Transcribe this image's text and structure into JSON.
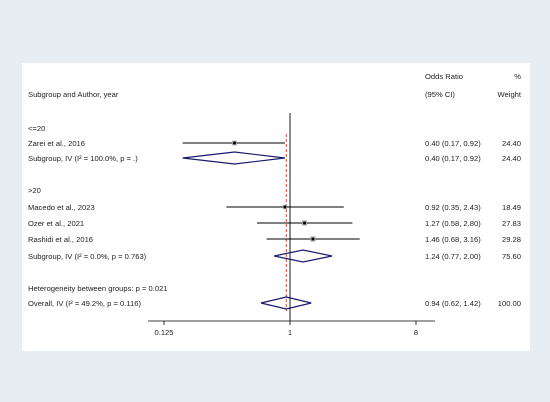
{
  "chart_data": {
    "type": "forest",
    "x_scale": "log",
    "xlim": [
      0.08,
      10
    ],
    "xticks": [
      {
        "value": 0.125,
        "label": "0.125"
      },
      {
        "value": 1,
        "label": "1"
      },
      {
        "value": 8,
        "label": "8"
      }
    ],
    "null_line": 1,
    "overall_line": 0.94,
    "colors": {
      "diamond": "#1a1a6e",
      "overall_line": "#c0392b",
      "ci_line": "#000000",
      "box": "#a6a6a6"
    },
    "headers": {
      "study_col": "Subgroup and Author, year",
      "or_line1": "Odds Ratio",
      "or_line2": "(95% CI)",
      "weight_line1": "%",
      "weight_line2": "Weight"
    },
    "rows": [
      {
        "kind": "header",
        "label": "<=20"
      },
      {
        "kind": "study",
        "label": "Zarei et al., 2016",
        "or": 0.4,
        "lo": 0.17,
        "hi": 0.92,
        "ci_text": "0.40 (0.17, 0.92)",
        "weight": "24.40"
      },
      {
        "kind": "subtotal",
        "label": "Subgroup, IV (I² = 100.0%, p = .)",
        "or": 0.4,
        "lo": 0.17,
        "hi": 0.92,
        "ci_text": "0.40 (0.17, 0.92)",
        "weight": "24.40"
      },
      {
        "kind": "header",
        "label": ">20"
      },
      {
        "kind": "study",
        "label": "Macedo et al., 2023",
        "or": 0.92,
        "lo": 0.35,
        "hi": 2.43,
        "ci_text": "0.92 (0.35, 2.43)",
        "weight": "18.49"
      },
      {
        "kind": "study",
        "label": "Ozer et al., 2021",
        "or": 1.27,
        "lo": 0.58,
        "hi": 2.8,
        "ci_text": "1.27 (0.58, 2.80)",
        "weight": "27.83"
      },
      {
        "kind": "study",
        "label": "Rashidi et al., 2016",
        "or": 1.46,
        "lo": 0.68,
        "hi": 3.16,
        "ci_text": "1.46 (0.68, 3.16)",
        "weight": "29.28"
      },
      {
        "kind": "subtotal",
        "label": "Subgroup, IV (I² = 0.0%, p = 0.763)",
        "or": 1.24,
        "lo": 0.77,
        "hi": 2.0,
        "ci_text": "1.24 (0.77, 2.00)",
        "weight": "75.60"
      },
      {
        "kind": "note",
        "label": "Heterogeneity between groups: p = 0.021"
      },
      {
        "kind": "overall",
        "label": "Overall, IV (I² = 49.2%, p = 0.116)",
        "or": 0.94,
        "lo": 0.62,
        "hi": 1.42,
        "ci_text": "0.94 (0.62, 1.42)",
        "weight": "100.00"
      }
    ]
  }
}
